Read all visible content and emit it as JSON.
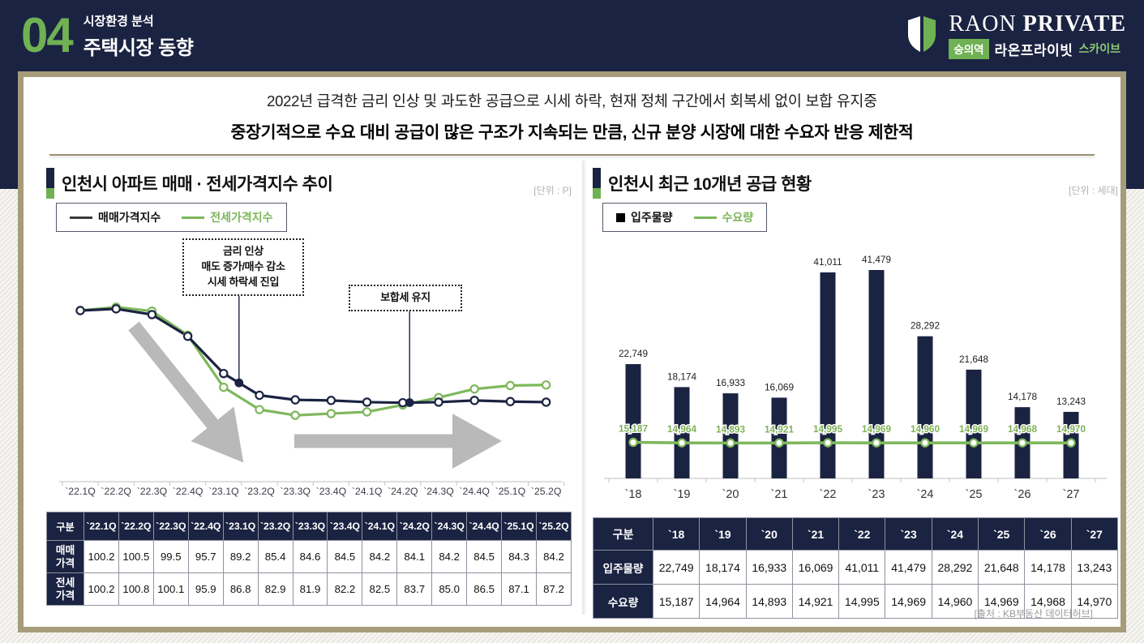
{
  "colors": {
    "navy": "#1b2342",
    "green": "#6fb153",
    "chart_green": "#7eb85c",
    "tan": "#a69c7a"
  },
  "header": {
    "number": "04",
    "category": "시장환경 분석",
    "title": "주택시장 동향",
    "logo": {
      "raon": "RAON",
      "private": "PRIVATE",
      "station_badge": "숭의역",
      "brand_kr": "라온프라이빗",
      "brand_sub": "스카이브"
    }
  },
  "summary": {
    "line1": "2022년 급격한 금리 인상 및 과도한 공급으로 시세 하락, 현재 정체 구간에서 회복세 없이 보합 유지중",
    "line2": "중장기적으로 수요 대비 공급이 많은 구조가 지속되는 만큼, 신규 분양 시장에 대한 수요자 반응 제한적"
  },
  "left_section": {
    "title": "인천시 아파트 매매 · 전세가격지수 추이",
    "unit": "[단위 : P]",
    "legend": [
      "매매가격지수",
      "전세가격지수"
    ],
    "table": {
      "corner": "구분",
      "columns": [
        "`22.1Q",
        "`22.2Q",
        "`22.3Q",
        "`22.4Q",
        "`23.1Q",
        "`23.2Q",
        "`23.3Q",
        "`23.4Q",
        "`24.1Q",
        "`24.2Q",
        "`24.3Q",
        "`24.4Q",
        "`25.1Q",
        "`25.2Q"
      ],
      "rows": [
        {
          "label": "매매\n가격",
          "values": [
            "100.2",
            "100.5",
            "99.5",
            "95.7",
            "89.2",
            "85.4",
            "84.6",
            "84.5",
            "84.2",
            "84.1",
            "84.2",
            "84.5",
            "84.3",
            "84.2"
          ]
        },
        {
          "label": "전세\n가격",
          "values": [
            "100.2",
            "100.8",
            "100.1",
            "95.9",
            "86.8",
            "82.9",
            "81.9",
            "82.2",
            "82.5",
            "83.7",
            "85.0",
            "86.5",
            "87.1",
            "87.2"
          ]
        }
      ]
    }
  },
  "right_section": {
    "title": "인천시 최근 10개년 공급 현황",
    "unit": "[단위 : 세대]",
    "legend": [
      "입주물량",
      "수요량"
    ],
    "table": {
      "corner": "구분",
      "columns": [
        "`18",
        "`19",
        "`20",
        "`21",
        "`22",
        "`23",
        "`24",
        "`25",
        "`26",
        "`27"
      ],
      "rows": [
        {
          "label": "입주물량",
          "values": [
            "22,749",
            "18,174",
            "16,933",
            "16,069",
            "41,011",
            "41,479",
            "28,292",
            "21,648",
            "14,178",
            "13,243"
          ]
        },
        {
          "label": "수요량",
          "values": [
            "15,187",
            "14,964",
            "14,893",
            "14,921",
            "14,995",
            "14,969",
            "14,960",
            "14,969",
            "14,968",
            "14,970"
          ]
        }
      ]
    }
  },
  "chart_data": [
    {
      "type": "line",
      "title": "인천시 아파트 매매 · 전세가격지수 추이",
      "unit": "[단위 : P]",
      "categories": [
        "`22.1Q",
        "`22.2Q",
        "`22.3Q",
        "`22.4Q",
        "`23.1Q",
        "`23.2Q",
        "`23.3Q",
        "`23.4Q",
        "`24.1Q",
        "`24.2Q",
        "`24.3Q",
        "`24.4Q",
        "`25.1Q",
        "`25.2Q"
      ],
      "series": [
        {
          "name": "매매가격지수",
          "color": "#1b2342",
          "values": [
            100.2,
            100.5,
            99.5,
            95.7,
            89.2,
            85.4,
            84.6,
            84.5,
            84.2,
            84.1,
            84.2,
            84.5,
            84.3,
            84.2
          ]
        },
        {
          "name": "전세가격지수",
          "color": "#7eb85c",
          "values": [
            100.2,
            100.8,
            100.1,
            95.9,
            86.8,
            82.9,
            81.9,
            82.2,
            82.5,
            83.7,
            85.0,
            86.5,
            87.1,
            87.2
          ]
        }
      ],
      "annotations": [
        {
          "text": "금리 인상\n매도 증가/매수 감소\n시세 하락세 진입",
          "x_index": 4.43
        },
        {
          "text": "보합세 유지",
          "x_index": 9.19
        }
      ],
      "ylim": [
        78,
        104
      ],
      "grid": false,
      "legend_position": "top-left"
    },
    {
      "type": "bar",
      "title": "인천시 최근 10개년 공급 현황",
      "unit": "[단위 : 세대]",
      "categories": [
        "`18",
        "`19",
        "`20",
        "`21",
        "`22",
        "`23",
        "`24",
        "`25",
        "`26",
        "`27"
      ],
      "series": [
        {
          "name": "입주물량",
          "type": "bar",
          "color": "#1b2342",
          "values": [
            22749,
            18174,
            16933,
            16069,
            41011,
            41479,
            28292,
            21648,
            14178,
            13243
          ]
        },
        {
          "name": "수요량",
          "type": "line",
          "color": "#7eb85c",
          "values": [
            15187,
            14964,
            14893,
            14921,
            14995,
            14969,
            14960,
            14969,
            14968,
            14970
          ]
        }
      ],
      "ylim": [
        0,
        45000
      ],
      "grid": false,
      "legend_position": "top-left"
    }
  ],
  "source": "[출처 : KB부동산 데이터허브]"
}
